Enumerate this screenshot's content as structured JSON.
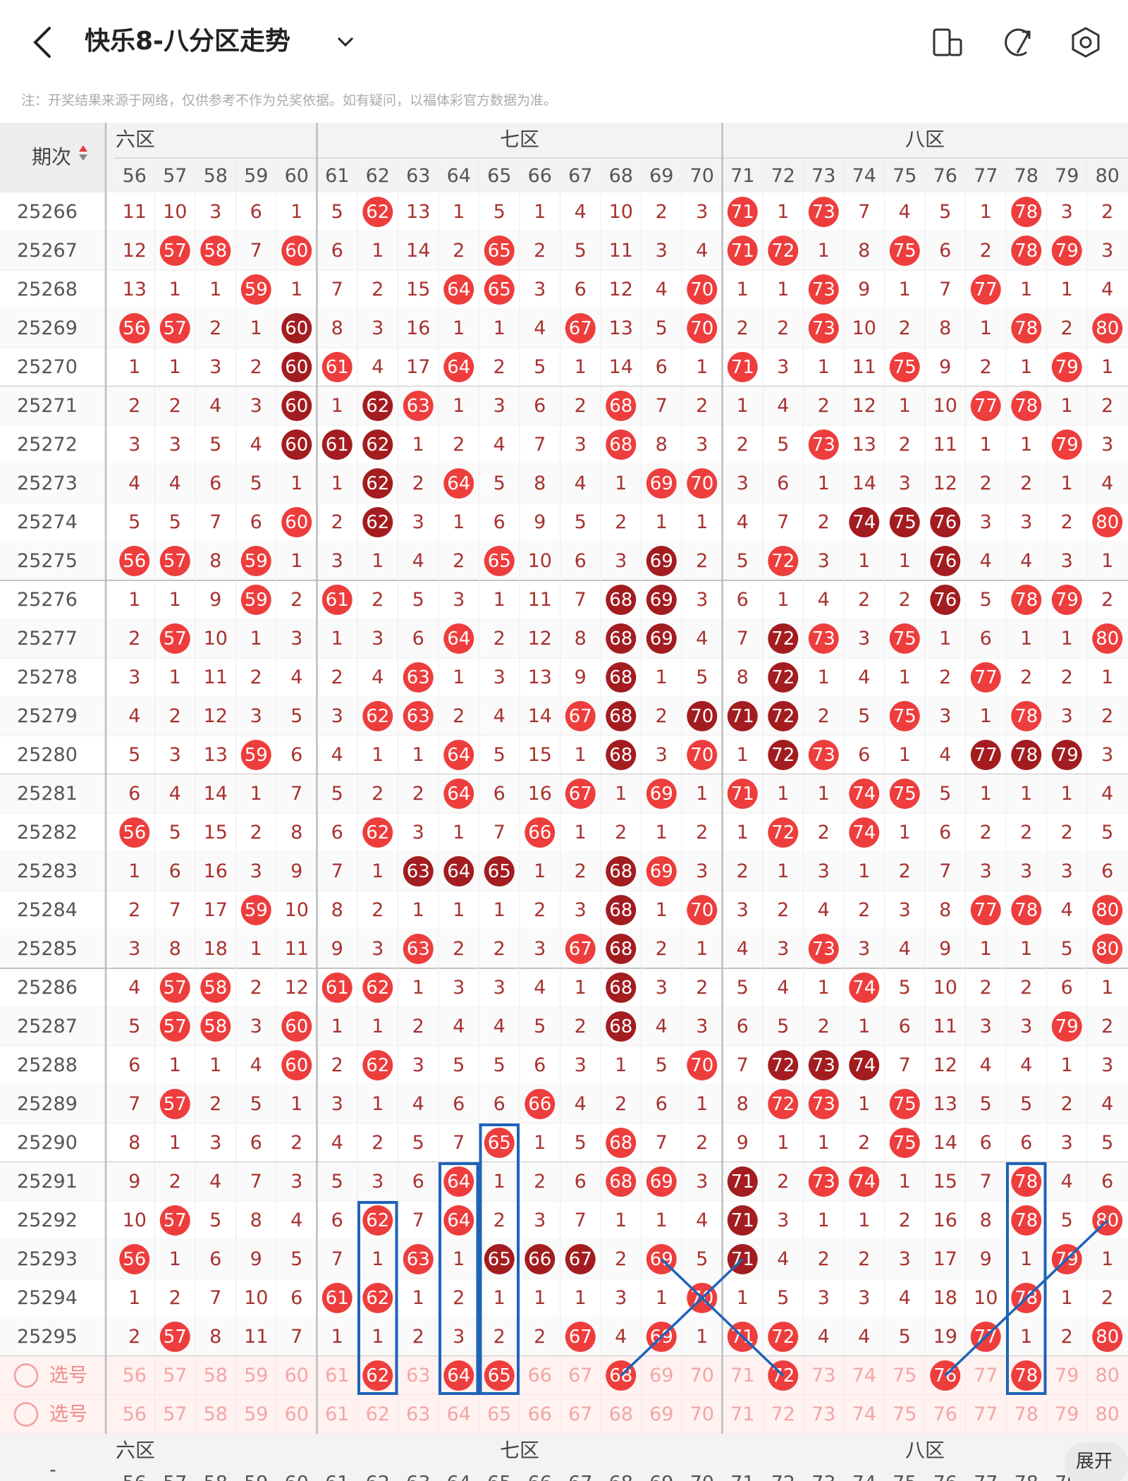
{
  "header": {
    "title": "快乐8-八分区走势",
    "note": "注：开奖结果来源于网络，仅供参考不作为兑奖依据。如有疑问，以福体彩官方数据为准。"
  },
  "table": {
    "period_header": "期次",
    "zones": [
      {
        "label": "六区",
        "columns": [
          56,
          57,
          58,
          59,
          60
        ]
      },
      {
        "label": "七区",
        "columns": [
          61,
          62,
          63,
          64,
          65,
          66,
          67,
          68,
          69,
          70
        ]
      },
      {
        "label": "八区",
        "columns": [
          71,
          72,
          73,
          74,
          75,
          76,
          77,
          78,
          79,
          80
        ]
      }
    ],
    "rows": [
      {
        "period": 25266,
        "cells": [
          11,
          10,
          3,
          6,
          1,
          5,
          62,
          13,
          1,
          5,
          1,
          4,
          10,
          2,
          3,
          71,
          1,
          73,
          7,
          4,
          5,
          1,
          78,
          3,
          2
        ]
      },
      {
        "period": 25267,
        "cells": [
          12,
          57,
          58,
          7,
          60,
          6,
          1,
          14,
          2,
          65,
          2,
          5,
          11,
          3,
          4,
          71,
          72,
          1,
          8,
          75,
          6,
          2,
          78,
          79,
          3
        ]
      },
      {
        "period": 25268,
        "cells": [
          13,
          1,
          1,
          59,
          1,
          7,
          2,
          15,
          64,
          65,
          3,
          6,
          12,
          4,
          70,
          1,
          1,
          73,
          9,
          1,
          7,
          77,
          1,
          1,
          4
        ]
      },
      {
        "period": 25269,
        "cells": [
          56,
          57,
          2,
          1,
          {
            "value": 60,
            "dark": true
          },
          8,
          3,
          16,
          1,
          1,
          4,
          67,
          13,
          5,
          70,
          2,
          2,
          73,
          10,
          2,
          8,
          1,
          78,
          2,
          80
        ]
      },
      {
        "period": 25270,
        "cells": [
          1,
          1,
          3,
          2,
          {
            "value": 60,
            "dark": true
          },
          61,
          4,
          17,
          64,
          2,
          5,
          1,
          14,
          6,
          1,
          71,
          3,
          1,
          11,
          75,
          9,
          2,
          1,
          79,
          1
        ]
      },
      {
        "period": 25271,
        "cells": [
          2,
          2,
          4,
          3,
          {
            "value": 60,
            "dark": true
          },
          1,
          {
            "value": 62,
            "dark": true
          },
          63,
          1,
          3,
          6,
          2,
          68,
          7,
          2,
          1,
          4,
          2,
          12,
          1,
          10,
          77,
          78,
          1,
          2
        ]
      },
      {
        "period": 25272,
        "cells": [
          3,
          3,
          5,
          4,
          {
            "value": 60,
            "dark": true
          },
          {
            "value": 61,
            "dark": true
          },
          {
            "value": 62,
            "dark": true
          },
          1,
          2,
          4,
          7,
          3,
          68,
          8,
          3,
          2,
          5,
          73,
          13,
          2,
          11,
          1,
          1,
          79,
          3
        ]
      },
      {
        "period": 25273,
        "cells": [
          4,
          4,
          6,
          5,
          1,
          1,
          {
            "value": 62,
            "dark": true
          },
          2,
          64,
          5,
          8,
          4,
          1,
          69,
          70,
          3,
          6,
          1,
          14,
          3,
          12,
          2,
          2,
          1,
          4
        ]
      },
      {
        "period": 25274,
        "cells": [
          5,
          5,
          7,
          6,
          60,
          2,
          {
            "value": 62,
            "dark": true
          },
          3,
          1,
          6,
          9,
          5,
          2,
          1,
          1,
          4,
          7,
          2,
          {
            "value": 74,
            "dark": true
          },
          {
            "value": 75,
            "dark": true
          },
          {
            "value": 76,
            "dark": true
          },
          3,
          3,
          2,
          80
        ]
      },
      {
        "period": 25275,
        "cells": [
          56,
          57,
          8,
          59,
          1,
          3,
          1,
          4,
          2,
          65,
          10,
          6,
          3,
          {
            "value": 69,
            "dark": true
          },
          2,
          5,
          72,
          3,
          1,
          1,
          {
            "value": 76,
            "dark": true
          },
          4,
          4,
          3,
          1
        ]
      },
      {
        "period": 25276,
        "cells": [
          1,
          1,
          9,
          59,
          2,
          61,
          2,
          5,
          3,
          1,
          11,
          7,
          {
            "value": 68,
            "dark": true
          },
          {
            "value": 69,
            "dark": true
          },
          3,
          6,
          1,
          4,
          2,
          2,
          {
            "value": 76,
            "dark": true
          },
          5,
          78,
          79,
          2
        ]
      },
      {
        "period": 25277,
        "cells": [
          2,
          57,
          10,
          1,
          3,
          1,
          3,
          6,
          64,
          2,
          12,
          8,
          {
            "value": 68,
            "dark": true
          },
          {
            "value": 69,
            "dark": true
          },
          4,
          7,
          {
            "value": 72,
            "dark": true
          },
          73,
          3,
          75,
          1,
          6,
          1,
          1,
          80
        ]
      },
      {
        "period": 25278,
        "cells": [
          3,
          1,
          11,
          2,
          4,
          2,
          4,
          63,
          1,
          3,
          13,
          9,
          {
            "value": 68,
            "dark": true
          },
          1,
          5,
          8,
          {
            "value": 72,
            "dark": true
          },
          1,
          4,
          1,
          2,
          77,
          2,
          2,
          1
        ]
      },
      {
        "period": 25279,
        "cells": [
          4,
          2,
          12,
          3,
          5,
          3,
          62,
          63,
          2,
          4,
          14,
          67,
          {
            "value": 68,
            "dark": true
          },
          2,
          {
            "value": 70,
            "dark": true
          },
          {
            "value": 71,
            "dark": true
          },
          {
            "value": 72,
            "dark": true
          },
          2,
          5,
          75,
          3,
          1,
          78,
          3,
          2
        ]
      },
      {
        "period": 25280,
        "cells": [
          5,
          3,
          13,
          59,
          6,
          4,
          1,
          1,
          64,
          5,
          15,
          1,
          {
            "value": 68,
            "dark": true
          },
          3,
          70,
          1,
          {
            "value": 72,
            "dark": true
          },
          73,
          6,
          1,
          4,
          {
            "value": 77,
            "dark": true
          },
          {
            "value": 78,
            "dark": true
          },
          {
            "value": 79,
            "dark": true
          },
          3
        ]
      },
      {
        "period": 25281,
        "cells": [
          6,
          4,
          14,
          1,
          7,
          5,
          2,
          2,
          64,
          6,
          16,
          67,
          1,
          69,
          1,
          71,
          1,
          1,
          74,
          75,
          5,
          1,
          1,
          1,
          4
        ]
      },
      {
        "period": 25282,
        "cells": [
          56,
          5,
          15,
          2,
          8,
          6,
          62,
          3,
          1,
          7,
          66,
          1,
          2,
          1,
          2,
          1,
          72,
          2,
          74,
          1,
          6,
          2,
          2,
          2,
          5
        ]
      },
      {
        "period": 25283,
        "cells": [
          1,
          6,
          16,
          3,
          9,
          7,
          1,
          {
            "value": 63,
            "dark": true
          },
          {
            "value": 64,
            "dark": true
          },
          {
            "value": 65,
            "dark": true
          },
          1,
          2,
          {
            "value": 68,
            "dark": true
          },
          69,
          3,
          2,
          1,
          3,
          1,
          2,
          7,
          3,
          3,
          3,
          6
        ]
      },
      {
        "period": 25284,
        "cells": [
          2,
          7,
          17,
          59,
          10,
          8,
          2,
          1,
          1,
          1,
          2,
          3,
          {
            "value": 68,
            "dark": true
          },
          1,
          70,
          3,
          2,
          4,
          2,
          3,
          8,
          77,
          78,
          4,
          80
        ]
      },
      {
        "period": 25285,
        "cells": [
          3,
          8,
          18,
          1,
          11,
          9,
          3,
          63,
          2,
          2,
          3,
          67,
          {
            "value": 68,
            "dark": true
          },
          2,
          1,
          4,
          3,
          73,
          3,
          4,
          9,
          1,
          1,
          5,
          80
        ]
      },
      {
        "period": 25286,
        "cells": [
          4,
          57,
          58,
          2,
          12,
          61,
          62,
          1,
          3,
          3,
          4,
          1,
          {
            "value": 68,
            "dark": true
          },
          3,
          2,
          5,
          4,
          1,
          74,
          5,
          10,
          2,
          2,
          6,
          1
        ]
      },
      {
        "period": 25287,
        "cells": [
          5,
          57,
          58,
          3,
          60,
          1,
          1,
          2,
          4,
          4,
          5,
          2,
          {
            "value": 68,
            "dark": true
          },
          4,
          3,
          6,
          5,
          2,
          1,
          6,
          11,
          3,
          3,
          79,
          2
        ]
      },
      {
        "period": 25288,
        "cells": [
          6,
          1,
          1,
          4,
          60,
          2,
          62,
          3,
          5,
          5,
          6,
          3,
          1,
          5,
          70,
          7,
          {
            "value": 72,
            "dark": true
          },
          {
            "value": 73,
            "dark": true
          },
          {
            "value": 74,
            "dark": true
          },
          7,
          12,
          4,
          4,
          1,
          3
        ]
      },
      {
        "period": 25289,
        "cells": [
          7,
          57,
          2,
          5,
          1,
          3,
          1,
          4,
          6,
          6,
          66,
          4,
          2,
          6,
          1,
          8,
          72,
          73,
          1,
          75,
          13,
          5,
          5,
          2,
          4
        ]
      },
      {
        "period": 25290,
        "cells": [
          8,
          1,
          3,
          6,
          2,
          4,
          2,
          5,
          7,
          65,
          1,
          5,
          68,
          7,
          2,
          9,
          1,
          1,
          2,
          75,
          14,
          6,
          6,
          3,
          5
        ]
      },
      {
        "period": 25291,
        "cells": [
          9,
          2,
          4,
          7,
          3,
          5,
          3,
          6,
          64,
          1,
          2,
          6,
          68,
          69,
          3,
          {
            "value": 71,
            "dark": true
          },
          2,
          73,
          74,
          1,
          15,
          7,
          78,
          4,
          6
        ]
      },
      {
        "period": 25292,
        "cells": [
          10,
          57,
          5,
          8,
          4,
          6,
          62,
          7,
          64,
          2,
          3,
          7,
          1,
          1,
          4,
          {
            "value": 71,
            "dark": true
          },
          3,
          1,
          1,
          2,
          16,
          8,
          78,
          5,
          80
        ]
      },
      {
        "period": 25293,
        "cells": [
          56,
          1,
          6,
          9,
          5,
          7,
          1,
          63,
          1,
          {
            "value": 65,
            "dark": true
          },
          {
            "value": 66,
            "dark": true
          },
          {
            "value": 67,
            "dark": true
          },
          2,
          69,
          5,
          {
            "value": 71,
            "dark": true
          },
          4,
          2,
          2,
          3,
          17,
          9,
          1,
          79,
          1
        ]
      },
      {
        "period": 25294,
        "cells": [
          1,
          2,
          7,
          10,
          6,
          61,
          62,
          1,
          2,
          1,
          1,
          1,
          3,
          1,
          70,
          1,
          5,
          3,
          3,
          4,
          18,
          10,
          78,
          1,
          2
        ]
      },
      {
        "period": 25295,
        "cells": [
          2,
          57,
          8,
          11,
          7,
          1,
          1,
          2,
          3,
          2,
          2,
          67,
          4,
          69,
          1,
          71,
          72,
          4,
          4,
          5,
          19,
          77,
          1,
          2,
          80
        ]
      }
    ],
    "select_label": "选号",
    "picked": [
      62,
      64,
      65,
      68,
      72,
      76,
      78
    ]
  },
  "footer": {
    "collapse": "-",
    "expand": "展开"
  }
}
